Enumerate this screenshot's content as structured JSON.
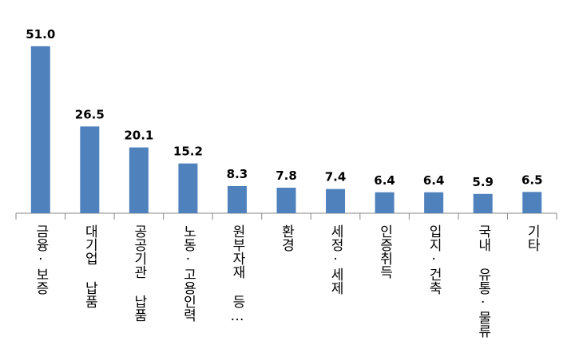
{
  "chart_data": {
    "type": "bar",
    "categories": [
      "금융·보증",
      "대기업 납품",
      "공공기관 납품",
      "노동·고용인력",
      "원부자재 등…",
      "환경",
      "세정·세제",
      "인증취득",
      "입지·건축",
      "국내 유통·물류",
      "기타"
    ],
    "values": [
      51.0,
      26.5,
      20.1,
      15.2,
      8.3,
      7.8,
      7.4,
      6.4,
      6.4,
      5.9,
      6.5
    ],
    "value_labels": [
      "51.0",
      "26.5",
      "20.1",
      "15.2",
      "8.3",
      "7.8",
      "7.4",
      "6.4",
      "6.4",
      "5.9",
      "6.5"
    ],
    "color": "#4f81bd",
    "ylim": [
      0,
      55
    ]
  }
}
